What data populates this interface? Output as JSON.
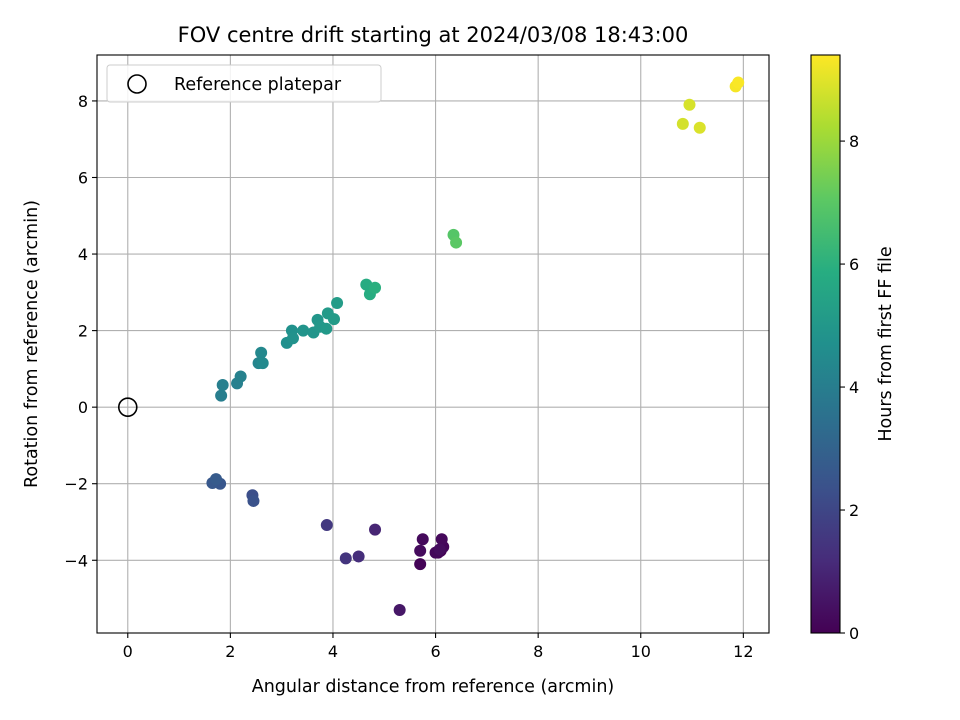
{
  "chart_data": {
    "type": "scatter",
    "title": "FOV centre drift starting at 2024/03/08 18:43:00",
    "xlabel": "Angular distance from reference (arcmin)",
    "ylabel": "Rotation from reference (arcmin)",
    "xlim": [
      -0.6,
      12.5
    ],
    "ylim": [
      -5.9,
      9.2
    ],
    "xticks": [
      0,
      2,
      4,
      6,
      8,
      10,
      12
    ],
    "xtick_labels": [
      "0",
      "2",
      "4",
      "6",
      "8",
      "10",
      "12"
    ],
    "yticks": [
      -4,
      -2,
      0,
      2,
      4,
      6,
      8
    ],
    "ytick_labels": [
      "−4",
      "−2",
      "0",
      "2",
      "4",
      "6",
      "8"
    ],
    "grid": true,
    "legend": {
      "placement": "upper-left",
      "entries": [
        "Reference platepar"
      ]
    },
    "reference_point": {
      "x": 0,
      "y": 0,
      "label": "Reference platepar"
    },
    "colorbar": {
      "label": "Hours from first FF file",
      "colormap": "viridis",
      "range": [
        0,
        9.4
      ],
      "ticks": [
        0,
        2,
        4,
        6,
        8
      ],
      "tick_labels": [
        "0",
        "2",
        "4",
        "6",
        "8"
      ]
    },
    "points": [
      {
        "x": 6.1,
        "y": -3.75,
        "c": 0.0
      },
      {
        "x": 5.7,
        "y": -4.1,
        "c": 0.08
      },
      {
        "x": 6.05,
        "y": -3.8,
        "c": 0.12
      },
      {
        "x": 6.15,
        "y": -3.65,
        "c": 0.15
      },
      {
        "x": 6.0,
        "y": -3.8,
        "c": 0.18
      },
      {
        "x": 6.12,
        "y": -3.45,
        "c": 0.22
      },
      {
        "x": 5.75,
        "y": -3.45,
        "c": 0.25
      },
      {
        "x": 5.7,
        "y": -3.75,
        "c": 0.28
      },
      {
        "x": 6.08,
        "y": -3.72,
        "c": 0.32
      },
      {
        "x": 5.3,
        "y": -5.3,
        "c": 0.6
      },
      {
        "x": 4.82,
        "y": -3.2,
        "c": 1.0
      },
      {
        "x": 4.5,
        "y": -3.9,
        "c": 1.25
      },
      {
        "x": 4.25,
        "y": -3.95,
        "c": 1.45
      },
      {
        "x": 3.88,
        "y": -3.08,
        "c": 1.6
      },
      {
        "x": 2.43,
        "y": -2.3,
        "c": 2.3
      },
      {
        "x": 2.45,
        "y": -2.45,
        "c": 2.4
      },
      {
        "x": 1.8,
        "y": -2.0,
        "c": 2.55
      },
      {
        "x": 1.65,
        "y": -1.98,
        "c": 2.6
      },
      {
        "x": 1.72,
        "y": -1.88,
        "c": 2.7
      },
      {
        "x": 1.82,
        "y": 0.3,
        "c": 4.0
      },
      {
        "x": 1.85,
        "y": 0.58,
        "c": 4.05
      },
      {
        "x": 2.13,
        "y": 0.62,
        "c": 4.1
      },
      {
        "x": 2.2,
        "y": 0.8,
        "c": 4.15
      },
      {
        "x": 2.55,
        "y": 1.15,
        "c": 4.3
      },
      {
        "x": 2.6,
        "y": 1.42,
        "c": 4.4
      },
      {
        "x": 2.63,
        "y": 1.15,
        "c": 4.45
      },
      {
        "x": 3.1,
        "y": 1.68,
        "c": 4.7
      },
      {
        "x": 3.2,
        "y": 2.0,
        "c": 4.75
      },
      {
        "x": 3.22,
        "y": 1.8,
        "c": 4.8
      },
      {
        "x": 3.42,
        "y": 2.0,
        "c": 4.85
      },
      {
        "x": 3.62,
        "y": 1.95,
        "c": 4.9
      },
      {
        "x": 3.7,
        "y": 2.28,
        "c": 4.95
      },
      {
        "x": 3.75,
        "y": 2.1,
        "c": 5.0
      },
      {
        "x": 3.87,
        "y": 2.05,
        "c": 5.05
      },
      {
        "x": 3.9,
        "y": 2.45,
        "c": 5.1
      },
      {
        "x": 4.02,
        "y": 2.3,
        "c": 5.15
      },
      {
        "x": 4.08,
        "y": 2.72,
        "c": 5.2
      },
      {
        "x": 4.65,
        "y": 3.2,
        "c": 5.8
      },
      {
        "x": 4.72,
        "y": 2.95,
        "c": 5.85
      },
      {
        "x": 4.82,
        "y": 3.12,
        "c": 5.95
      },
      {
        "x": 6.35,
        "y": 4.5,
        "c": 6.9
      },
      {
        "x": 6.4,
        "y": 4.3,
        "c": 7.0
      },
      {
        "x": 10.82,
        "y": 7.4,
        "c": 8.8
      },
      {
        "x": 10.95,
        "y": 7.9,
        "c": 8.85
      },
      {
        "x": 11.15,
        "y": 7.3,
        "c": 8.9
      },
      {
        "x": 11.85,
        "y": 8.38,
        "c": 9.3
      },
      {
        "x": 11.9,
        "y": 8.48,
        "c": 9.35
      }
    ]
  }
}
